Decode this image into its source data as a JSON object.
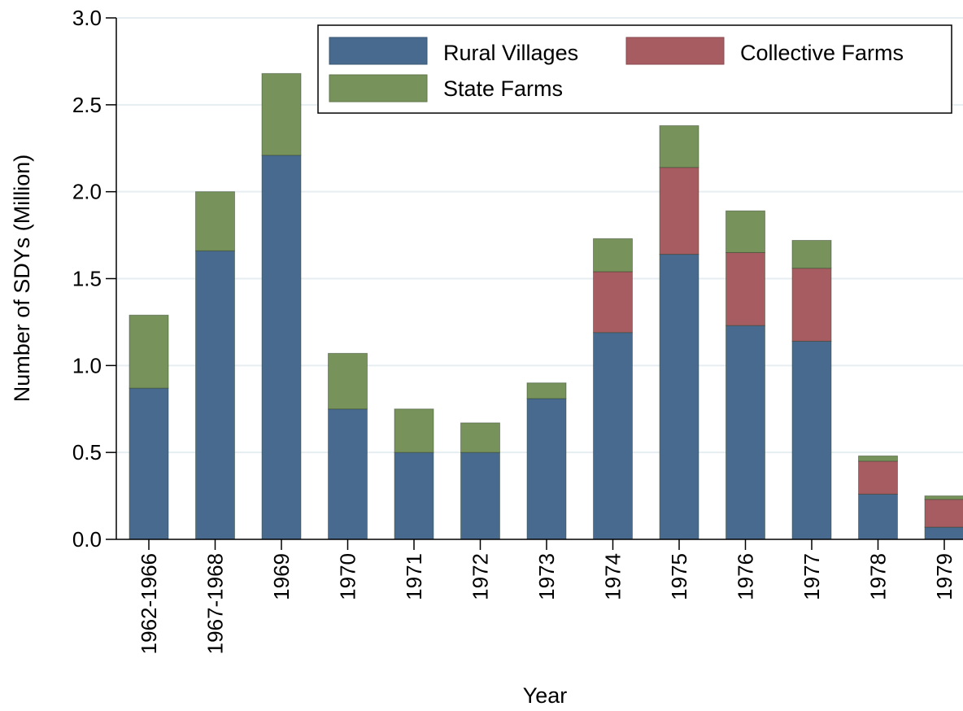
{
  "chart_data": {
    "type": "bar",
    "stacked": true,
    "xlabel": "Year",
    "ylabel": "Number of SDYs (Million)",
    "ylim": [
      0,
      3.0
    ],
    "yticks": [
      "0.0",
      "0.5",
      "1.0",
      "1.5",
      "2.0",
      "2.5",
      "3.0"
    ],
    "grid": true,
    "legend_position": "top-right",
    "categories": [
      "1962-1966",
      "1967-1968",
      "1969",
      "1970",
      "1971",
      "1972",
      "1973",
      "1974",
      "1975",
      "1976",
      "1977",
      "1978",
      "1979"
    ],
    "series": [
      {
        "name": "Rural Villages",
        "color": "#476a8e",
        "values": [
          0.87,
          1.66,
          2.21,
          0.75,
          0.5,
          0.5,
          0.81,
          1.19,
          1.64,
          1.23,
          1.14,
          0.26,
          0.07
        ]
      },
      {
        "name": "Collective Farms",
        "color": "#a65c61",
        "values": [
          0.0,
          0.0,
          0.0,
          0.0,
          0.0,
          0.0,
          0.0,
          0.35,
          0.5,
          0.42,
          0.42,
          0.19,
          0.16
        ]
      },
      {
        "name": "State Farms",
        "color": "#77925a",
        "values": [
          0.42,
          0.34,
          0.47,
          0.32,
          0.25,
          0.17,
          0.09,
          0.19,
          0.24,
          0.24,
          0.16,
          0.03,
          0.02
        ]
      }
    ]
  }
}
